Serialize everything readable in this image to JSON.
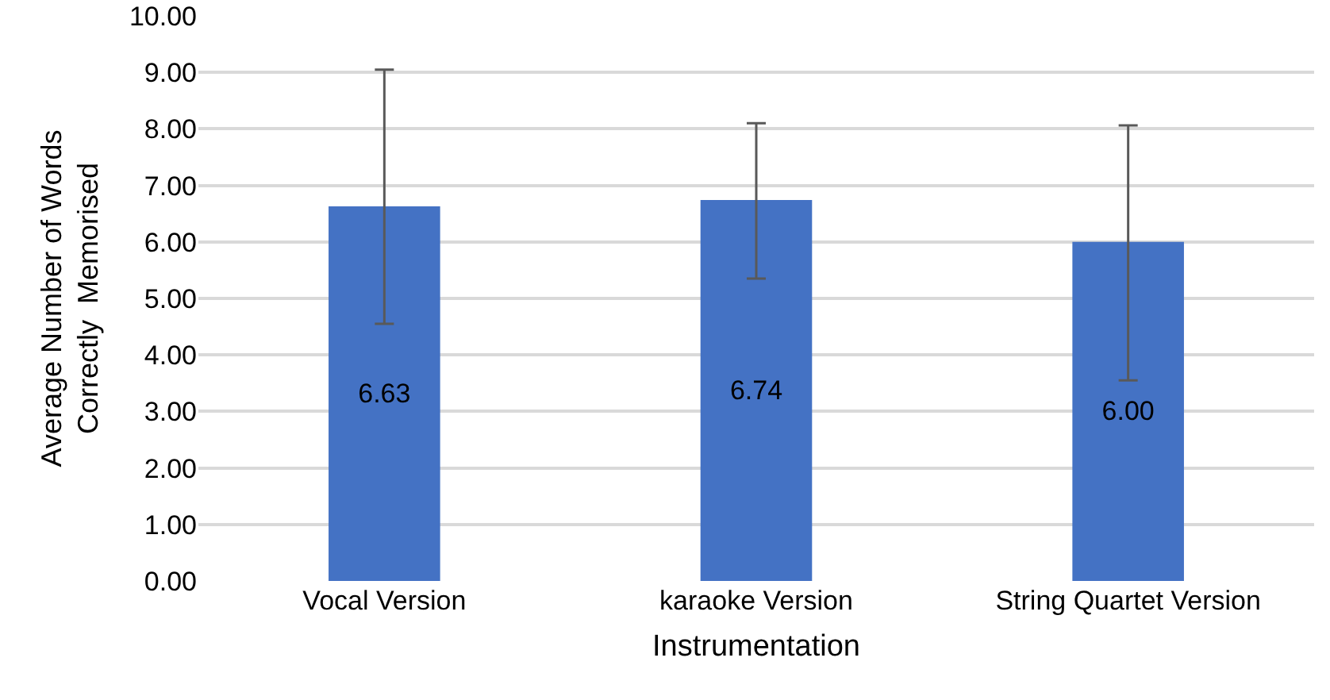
{
  "chart_data": {
    "type": "bar",
    "categories": [
      "Vocal Version",
      "karaoke Version",
      "String Quartet Version"
    ],
    "values": [
      6.63,
      6.74,
      6.0
    ],
    "value_labels": [
      "6.63",
      "6.74",
      "6.00"
    ],
    "errors": [
      [
        4.55,
        9.05
      ],
      [
        5.35,
        8.1
      ],
      [
        3.55,
        8.06
      ]
    ],
    "color": "#4472c4",
    "xlabel": "Instrumentation",
    "ylabel": "Average Number of Words\nCorrectly  Memorised",
    "ylim": [
      0,
      10
    ],
    "yticks": [
      {
        "value": 0,
        "label": "0.00"
      },
      {
        "value": 1,
        "label": "1.00"
      },
      {
        "value": 2,
        "label": "2.00"
      },
      {
        "value": 3,
        "label": "3.00"
      },
      {
        "value": 4,
        "label": "4.00"
      },
      {
        "value": 5,
        "label": "5.00"
      },
      {
        "value": 6,
        "label": "6.00"
      },
      {
        "value": 7,
        "label": "7.00"
      },
      {
        "value": 8,
        "label": "8.00"
      },
      {
        "value": 9,
        "label": "9.00"
      },
      {
        "value": 10,
        "label": "10.00"
      }
    ],
    "grid": "y"
  }
}
